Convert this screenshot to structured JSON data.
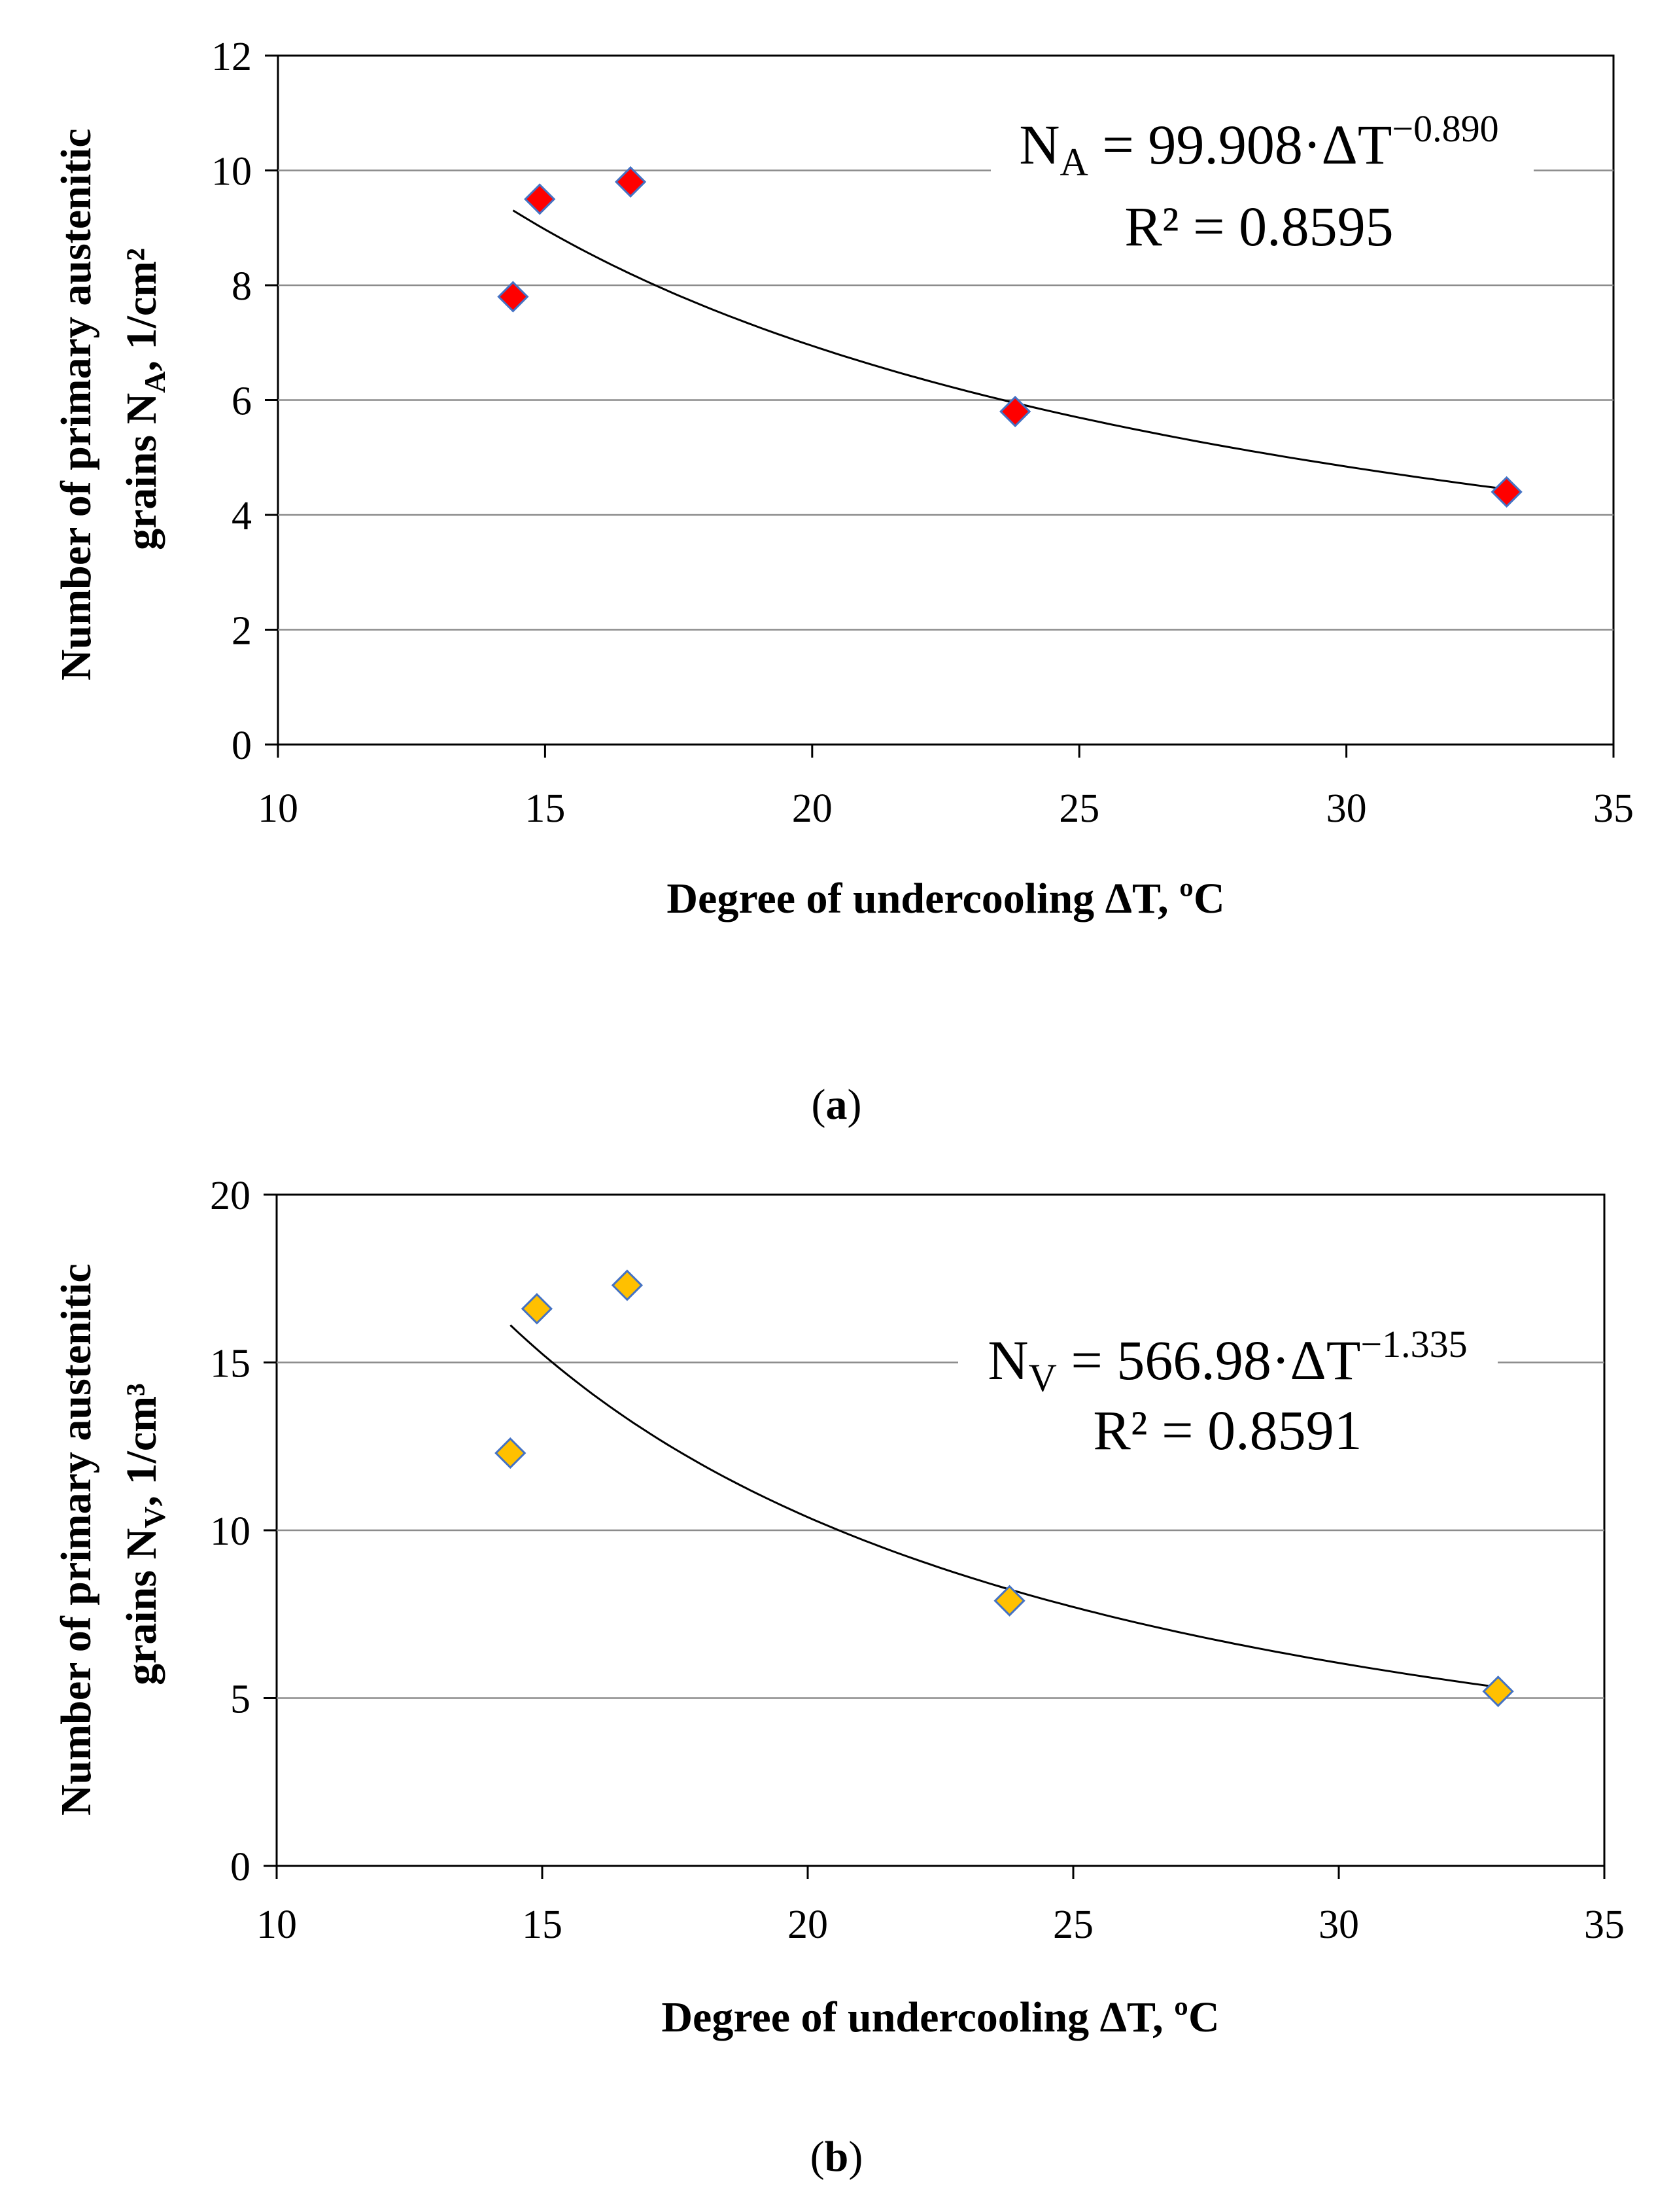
{
  "chart_data": [
    {
      "type": "scatter",
      "panel_label": "a",
      "xlabel": "Degree of undercooling ΔT, ºC",
      "ylabel_line1": "Number of primary austenitic",
      "ylabel_line2_prefix": "grains N",
      "ylabel_line2_sub": "A",
      "ylabel_line2_suffix": ", 1/cm²",
      "xlim": [
        10,
        35
      ],
      "ylim": [
        0,
        12
      ],
      "xticks": [
        10,
        15,
        20,
        25,
        30,
        35
      ],
      "yticks": [
        0,
        2,
        4,
        6,
        8,
        10,
        12
      ],
      "grid": "horizontal",
      "marker_color": "#ff0000",
      "marker_edge": "#4472c4",
      "points": [
        {
          "x": 14.4,
          "y": 7.8
        },
        {
          "x": 14.9,
          "y": 9.5
        },
        {
          "x": 16.6,
          "y": 9.8
        },
        {
          "x": 23.8,
          "y": 5.8
        },
        {
          "x": 33.0,
          "y": 4.4
        }
      ],
      "trendline": {
        "type": "power",
        "a": 99.908,
        "b": -0.89,
        "x_from": 14.4,
        "x_to": 33.0
      },
      "equation": {
        "var": "N",
        "sub": "A",
        "rhs": " = 99.908·ΔT",
        "exp": "−0.890",
        "r2": "R² = 0.8595"
      }
    },
    {
      "type": "scatter",
      "panel_label": "b",
      "xlabel": "Degree of undercooling ΔT, ºC",
      "ylabel_line1": "Number of primary austenitic",
      "ylabel_line2_prefix": "grains N",
      "ylabel_line2_sub": "V",
      "ylabel_line2_suffix": ", 1/cm³",
      "xlim": [
        10,
        35
      ],
      "ylim": [
        0,
        20
      ],
      "xticks": [
        10,
        15,
        20,
        25,
        30,
        35
      ],
      "yticks": [
        0,
        5,
        10,
        15,
        20
      ],
      "grid": "horizontal",
      "marker_color": "#ffc000",
      "marker_edge": "#4472c4",
      "points": [
        {
          "x": 14.4,
          "y": 12.3
        },
        {
          "x": 14.9,
          "y": 16.6
        },
        {
          "x": 16.6,
          "y": 17.3
        },
        {
          "x": 23.8,
          "y": 7.9
        },
        {
          "x": 33.0,
          "y": 5.2
        }
      ],
      "trendline": {
        "type": "power",
        "a": 566.98,
        "b": -1.335,
        "x_from": 14.4,
        "x_to": 33.0
      },
      "equation": {
        "var": "N",
        "sub": "V",
        "rhs": " = 566.98·ΔT",
        "exp": "−1.335",
        "r2": "R² = 0.8591"
      }
    }
  ]
}
